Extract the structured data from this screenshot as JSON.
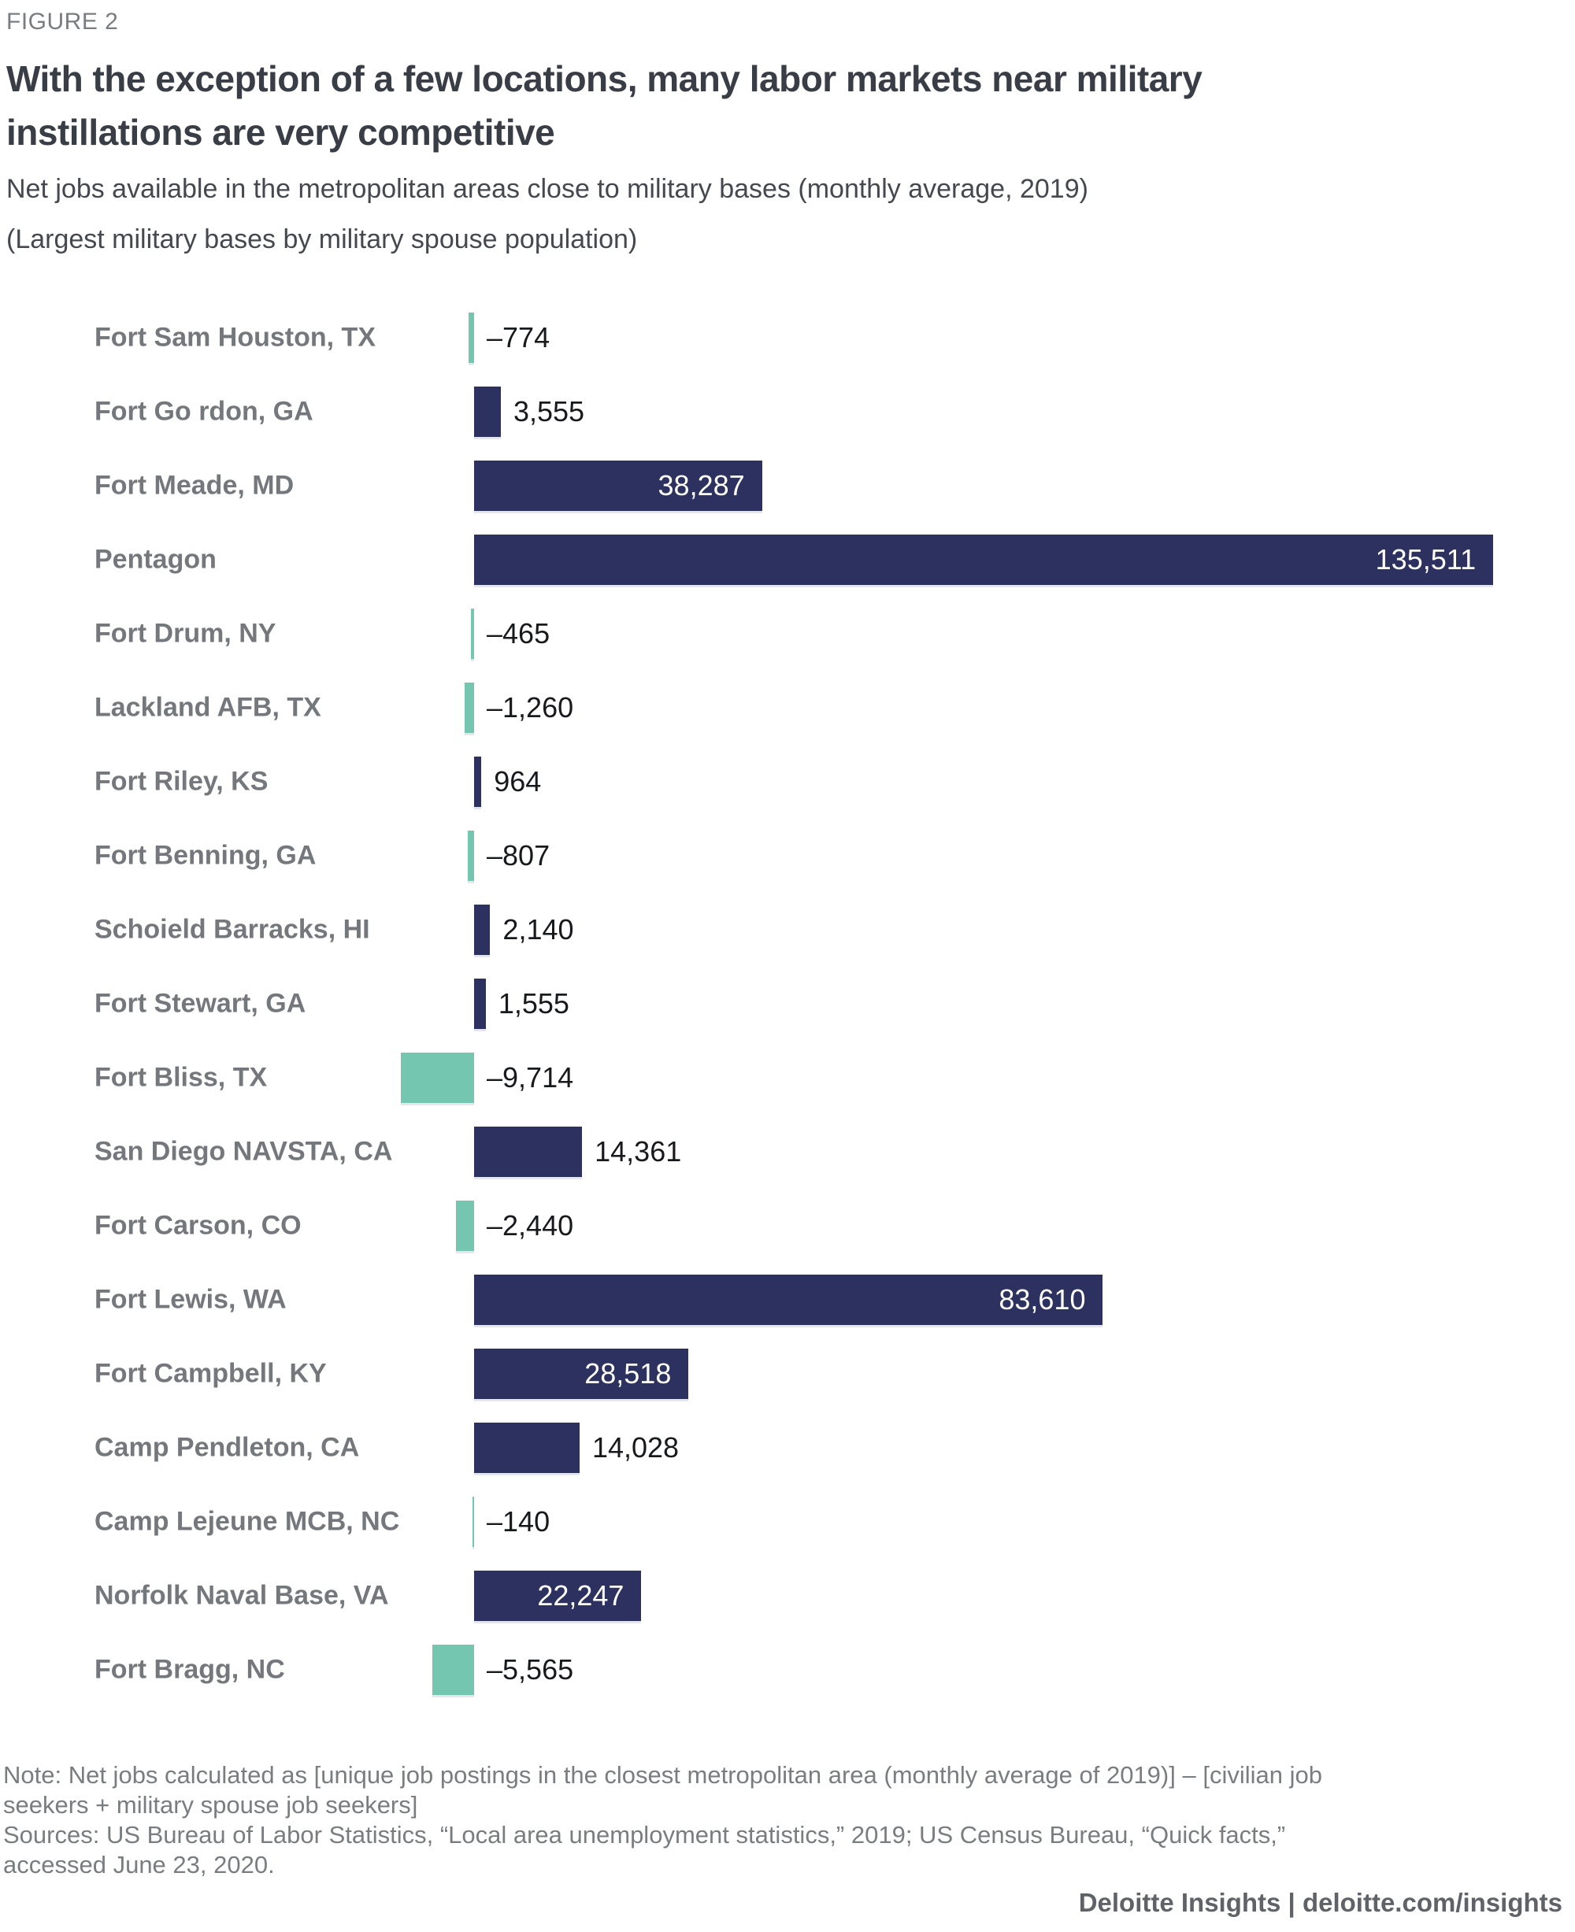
{
  "figure_label": "FIGURE 2",
  "title_lines": [
    "With the exception of a few locations, many labor markets near military",
    "instillations are very competitive"
  ],
  "subtitle": "Net jobs available in the metropolitan areas close to military bases (monthly average, 2019)",
  "subtitle_secondary": "(Largest military bases by military spouse population)",
  "colors": {
    "positive_bar": "#2c315f",
    "negative_bar": "#75c6b1",
    "value_label_dark": "#17191d",
    "value_label_light": "#ffffff"
  },
  "chart_data": {
    "type": "bar",
    "orientation": "horizontal",
    "title": "Net jobs available in the metropolitan areas close to military bases (monthly average, 2019)",
    "xlabel": "",
    "ylabel": "",
    "grid": false,
    "legend": false,
    "xlim": [
      -10000,
      140000
    ],
    "categories": [
      "Fort Sam Houston, TX",
      "Fort Go rdon, GA",
      "Fort Meade, MD",
      "Pentagon",
      "Fort Drum, NY",
      "Lackland AFB, TX",
      "Fort Riley, KS",
      "Fort Benning, GA",
      "Schoield Barracks, HI",
      "Fort Stewart, GA",
      "Fort Bliss, TX",
      "San Diego NAVSTA, CA",
      "Fort Carson, CO",
      "Fort Lewis, WA",
      "Fort Campbell, KY",
      "Camp Pendleton, CA",
      "Camp Lejeune MCB, NC",
      "Norfolk Naval Base, VA",
      "Fort Bragg, NC"
    ],
    "values": [
      -774,
      3555,
      38287,
      135511,
      -465,
      -1260,
      964,
      -807,
      2140,
      1555,
      -9714,
      14361,
      -2440,
      83610,
      28518,
      14028,
      -140,
      22247,
      -5565
    ],
    "value_labels": [
      "–774",
      "3,555",
      "38,287",
      "135,511",
      "–465",
      "–1,260",
      "964",
      "–807",
      "2,140",
      "1,555",
      "–9,714",
      "14,361",
      "–2,440",
      "83,610",
      "28,518",
      "14,028",
      "–140",
      "22,247",
      "–5,565"
    ]
  },
  "note_lines": [
    "Note: Net jobs calculated as [unique job postings in the closest metropolitan area (monthly average of 2019)] – [civilian job",
    "seekers + military spouse job seekers]"
  ],
  "sources_lines": [
    "Sources: US Bureau of Labor Statistics, “Local area unemployment statistics,” 2019; US Census Bureau, “Quick facts,”",
    "accessed June 23, 2020."
  ],
  "footer_brand": "Deloitte Insights | deloitte.com/insights"
}
